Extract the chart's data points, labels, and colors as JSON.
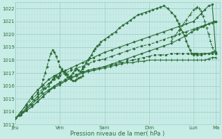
{
  "title": "",
  "xlabel": "Pression niveau de la mer( hPa )",
  "ylabel": "",
  "bg_color": "#c8ece6",
  "grid_color_major": "#9ecfca",
  "grid_color_minor": "#b8ddd9",
  "line_color": "#2d6e3a",
  "ylim": [
    1013,
    1022.5
  ],
  "yticks": [
    1013,
    1014,
    1015,
    1016,
    1017,
    1018,
    1019,
    1020,
    1021,
    1022
  ],
  "day_labels": [
    "Jeu",
    "Ven",
    "Sam",
    "Dim",
    "Lun",
    "Ma"
  ],
  "day_positions": [
    0,
    48,
    96,
    144,
    192,
    216
  ],
  "xlim": [
    0,
    220
  ],
  "series": [
    {
      "x": [
        0,
        4,
        8,
        12,
        16,
        20,
        24,
        28,
        32,
        36,
        38,
        40,
        42,
        44,
        46,
        48,
        50,
        52,
        54,
        56,
        58,
        60,
        62,
        64,
        66,
        68,
        70,
        72,
        74,
        76,
        78,
        80,
        82,
        84,
        86,
        88,
        90,
        92,
        96,
        100,
        104,
        108,
        112,
        116,
        120,
        124,
        128,
        132,
        136,
        140,
        144,
        148,
        152,
        156,
        160,
        164,
        168,
        172,
        174,
        176,
        178,
        180,
        182,
        184,
        186,
        188,
        190,
        192,
        194,
        196,
        200,
        204,
        208,
        212,
        216
      ],
      "y": [
        1013.5,
        1013.7,
        1014.0,
        1014.3,
        1014.6,
        1014.9,
        1015.2,
        1015.5,
        1015.8,
        1016.0,
        1016.3,
        1016.5,
        1016.7,
        1016.8,
        1016.6,
        1017.0,
        1017.2,
        1017.1,
        1017.0,
        1016.9,
        1016.7,
        1016.8,
        1017.0,
        1017.2,
        1017.3,
        1017.2,
        1017.1,
        1017.3,
        1017.5,
        1017.8,
        1018.0,
        1018.2,
        1018.4,
        1018.7,
        1018.9,
        1019.1,
        1019.2,
        1019.4,
        1019.6,
        1019.8,
        1020.0,
        1020.2,
        1020.5,
        1020.7,
        1020.9,
        1021.1,
        1021.3,
        1021.5,
        1021.6,
        1021.7,
        1021.8,
        1021.9,
        1022.0,
        1022.1,
        1022.2,
        1022.0,
        1021.7,
        1021.4,
        1021.1,
        1020.8,
        1020.4,
        1020.2,
        1019.9,
        1019.5,
        1019.1,
        1018.8,
        1018.5,
        1018.4,
        1018.5,
        1018.4,
        1018.4,
        1018.5,
        1018.5,
        1018.6,
        1018.6
      ],
      "style": "-",
      "marker": "D",
      "markersize": 1.5,
      "linewidth": 0.8
    },
    {
      "x": [
        0,
        6,
        12,
        18,
        24,
        30,
        36,
        42,
        48,
        54,
        60,
        66,
        72,
        78,
        84,
        90,
        96,
        102,
        108,
        114,
        120,
        126,
        132,
        138,
        144,
        150,
        156,
        162,
        168,
        174,
        180,
        186,
        192,
        196,
        200,
        204,
        208,
        212,
        216
      ],
      "y": [
        1013.5,
        1013.8,
        1014.1,
        1014.4,
        1014.8,
        1015.2,
        1015.6,
        1016.0,
        1016.3,
        1016.5,
        1016.7,
        1016.9,
        1017.1,
        1017.2,
        1017.3,
        1017.4,
        1017.5,
        1017.6,
        1017.7,
        1017.8,
        1017.9,
        1018.0,
        1018.1,
        1018.2,
        1018.3,
        1018.4,
        1018.4,
        1018.4,
        1018.5,
        1018.5,
        1018.5,
        1018.5,
        1018.5,
        1018.5,
        1018.5,
        1018.5,
        1018.5,
        1018.5,
        1018.5
      ],
      "style": "--",
      "marker": "s",
      "markersize": 1.5,
      "linewidth": 0.8
    },
    {
      "x": [
        0,
        6,
        12,
        18,
        24,
        30,
        36,
        42,
        48,
        54,
        60,
        66,
        72,
        78,
        84,
        90,
        96,
        102,
        108,
        114,
        120,
        126,
        132,
        138,
        144,
        150,
        156,
        162,
        168,
        174,
        180,
        186,
        192,
        196,
        200,
        204,
        208,
        212,
        216
      ],
      "y": [
        1013.5,
        1013.8,
        1014.2,
        1014.6,
        1015.0,
        1015.4,
        1015.7,
        1016.0,
        1016.2,
        1016.4,
        1016.6,
        1016.8,
        1017.0,
        1017.1,
        1017.2,
        1017.3,
        1017.4,
        1017.5,
        1017.6,
        1017.7,
        1017.8,
        1017.8,
        1017.9,
        1017.9,
        1018.0,
        1018.0,
        1018.0,
        1018.0,
        1018.0,
        1018.0,
        1018.0,
        1018.0,
        1018.0,
        1018.0,
        1018.0,
        1018.0,
        1018.1,
        1018.2,
        1018.2
      ],
      "style": "-",
      "marker": "+",
      "markersize": 2.5,
      "linewidth": 0.8
    },
    {
      "x": [
        0,
        6,
        12,
        18,
        24,
        30,
        36,
        42,
        48,
        54,
        60,
        66,
        72,
        78,
        84,
        90,
        96,
        104,
        112,
        120,
        128,
        136,
        144,
        152,
        160,
        168,
        176,
        184,
        190,
        196,
        202,
        208,
        214,
        216
      ],
      "y": [
        1013.5,
        1013.8,
        1014.1,
        1014.4,
        1014.8,
        1015.2,
        1015.6,
        1015.9,
        1016.1,
        1016.4,
        1016.6,
        1016.8,
        1017.0,
        1017.2,
        1017.3,
        1017.4,
        1017.5,
        1017.7,
        1017.9,
        1018.1,
        1018.3,
        1018.5,
        1018.7,
        1018.9,
        1019.1,
        1019.3,
        1019.6,
        1019.9,
        1020.2,
        1020.4,
        1020.6,
        1020.8,
        1021.0,
        1021.0
      ],
      "style": "-",
      "marker": "D",
      "markersize": 1.5,
      "linewidth": 0.8
    },
    {
      "x": [
        0,
        6,
        12,
        18,
        24,
        30,
        36,
        42,
        48,
        54,
        60,
        66,
        72,
        78,
        84,
        90,
        96,
        104,
        112,
        120,
        128,
        136,
        144,
        152,
        160,
        168,
        176,
        184,
        192,
        196,
        200,
        204,
        208,
        212,
        216
      ],
      "y": [
        1013.5,
        1014.0,
        1014.5,
        1015.0,
        1015.4,
        1015.8,
        1016.2,
        1016.5,
        1016.8,
        1017.0,
        1017.2,
        1017.4,
        1017.5,
        1017.7,
        1017.9,
        1018.0,
        1018.1,
        1018.3,
        1018.5,
        1018.7,
        1018.9,
        1019.1,
        1019.2,
        1019.4,
        1019.6,
        1019.8,
        1020.0,
        1020.2,
        1020.4,
        1020.5,
        1020.6,
        1020.7,
        1020.8,
        1020.9,
        1021.0
      ],
      "style": "--",
      "marker": "D",
      "markersize": 1.5,
      "linewidth": 0.8
    },
    {
      "x": [
        0,
        6,
        12,
        18,
        24,
        30,
        36,
        42,
        48,
        54,
        60,
        66,
        72,
        78,
        84,
        90,
        96,
        104,
        112,
        120,
        128,
        136,
        144,
        152,
        160,
        168,
        176,
        184,
        192,
        196,
        200,
        204,
        208,
        212,
        216
      ],
      "y": [
        1013.5,
        1014.0,
        1014.6,
        1015.2,
        1015.7,
        1016.1,
        1016.5,
        1016.8,
        1017.0,
        1017.2,
        1017.4,
        1017.6,
        1017.8,
        1018.0,
        1018.2,
        1018.4,
        1018.6,
        1018.8,
        1019.0,
        1019.2,
        1019.4,
        1019.6,
        1019.8,
        1020.0,
        1020.2,
        1020.4,
        1020.6,
        1020.8,
        1021.0,
        1021.3,
        1021.6,
        1021.9,
        1022.2,
        1022.3,
        1018.5
      ],
      "style": "-",
      "marker": "D",
      "markersize": 1.5,
      "linewidth": 0.8
    },
    {
      "x": [
        168,
        172,
        176,
        180,
        184,
        188,
        192,
        194,
        196,
        198,
        200,
        202,
        204,
        206,
        208,
        210,
        212,
        214,
        216
      ],
      "y": [
        1019.5,
        1019.9,
        1020.3,
        1020.7,
        1021.1,
        1021.5,
        1021.9,
        1022.0,
        1022.1,
        1022.0,
        1021.8,
        1021.4,
        1021.0,
        1020.5,
        1020.0,
        1019.5,
        1019.0,
        1018.7,
        1018.5
      ],
      "style": "--",
      "marker": "+",
      "markersize": 2.5,
      "linewidth": 0.8
    },
    {
      "x": [
        24,
        28,
        30,
        32,
        34,
        36,
        38,
        40,
        42,
        44,
        46,
        48,
        50,
        52,
        54,
        56,
        58,
        60,
        62,
        64,
        66,
        68,
        70,
        72
      ],
      "y": [
        1015.5,
        1016.0,
        1016.5,
        1017.0,
        1017.5,
        1018.0,
        1018.5,
        1018.8,
        1018.6,
        1018.3,
        1017.9,
        1017.5,
        1017.3,
        1017.1,
        1016.9,
        1016.7,
        1016.6,
        1016.5,
        1016.4,
        1016.4,
        1016.5,
        1016.6,
        1016.7,
        1016.8
      ],
      "style": "--",
      "marker": "D",
      "markersize": 1.5,
      "linewidth": 0.8
    }
  ]
}
